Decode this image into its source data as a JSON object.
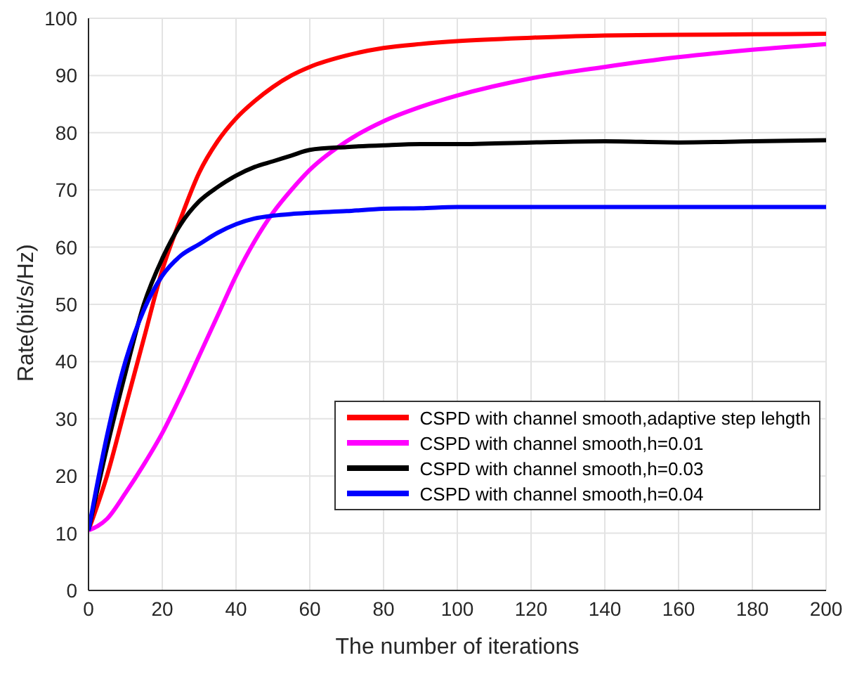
{
  "chart_data": {
    "type": "line",
    "xlabel": "The number of iterations",
    "ylabel": "Rate(bit/s/Hz)",
    "x": [
      0,
      5,
      10,
      15,
      20,
      25,
      30,
      35,
      40,
      45,
      50,
      55,
      60,
      70,
      80,
      90,
      100,
      120,
      140,
      160,
      180,
      200
    ],
    "xlim": [
      0,
      200
    ],
    "xticks": [
      0,
      20,
      40,
      60,
      80,
      100,
      120,
      140,
      160,
      180,
      200
    ],
    "ylim": [
      0,
      100
    ],
    "yticks": [
      0,
      10,
      20,
      30,
      40,
      50,
      60,
      70,
      80,
      90,
      100
    ],
    "grid": true,
    "legend": "bottom right",
    "marker": "none",
    "line_style": "solid",
    "series": [
      {
        "name": "CSPD with channel smooth,adaptive step lehgth",
        "color": "#ff0000",
        "values": [
          10.5,
          20,
          32,
          44,
          56,
          65,
          73,
          78.5,
          82.5,
          85.5,
          88,
          90,
          91.5,
          93.5,
          94.8,
          95.5,
          96,
          96.6,
          97,
          97.1,
          97.2,
          97.3
        ]
      },
      {
        "name": "CSPD with channel smooth,h=0.01",
        "color": "#ff00ff",
        "values": [
          10.5,
          12.5,
          17,
          22,
          27.5,
          34,
          41,
          48,
          55,
          61,
          66,
          70,
          73.5,
          78.5,
          82,
          84.5,
          86.5,
          89.5,
          91.5,
          93.2,
          94.5,
          95.5
        ]
      },
      {
        "name": "CSPD with channel smooth,h=0.03",
        "color": "#000000",
        "values": [
          10.5,
          25,
          38,
          50,
          58,
          64,
          68,
          70.5,
          72.5,
          74,
          75,
          76,
          77,
          77.5,
          77.8,
          78,
          78,
          78.3,
          78.5,
          78.3,
          78.5,
          78.7
        ]
      },
      {
        "name": "CSPD with channel smooth,h=0.04",
        "color": "#0000ff",
        "values": [
          10.5,
          27,
          40,
          49,
          55,
          58.5,
          60.5,
          62.5,
          64,
          65,
          65.5,
          65.8,
          66,
          66.3,
          66.7,
          66.8,
          67,
          67,
          67,
          67,
          67,
          67
        ]
      }
    ]
  }
}
